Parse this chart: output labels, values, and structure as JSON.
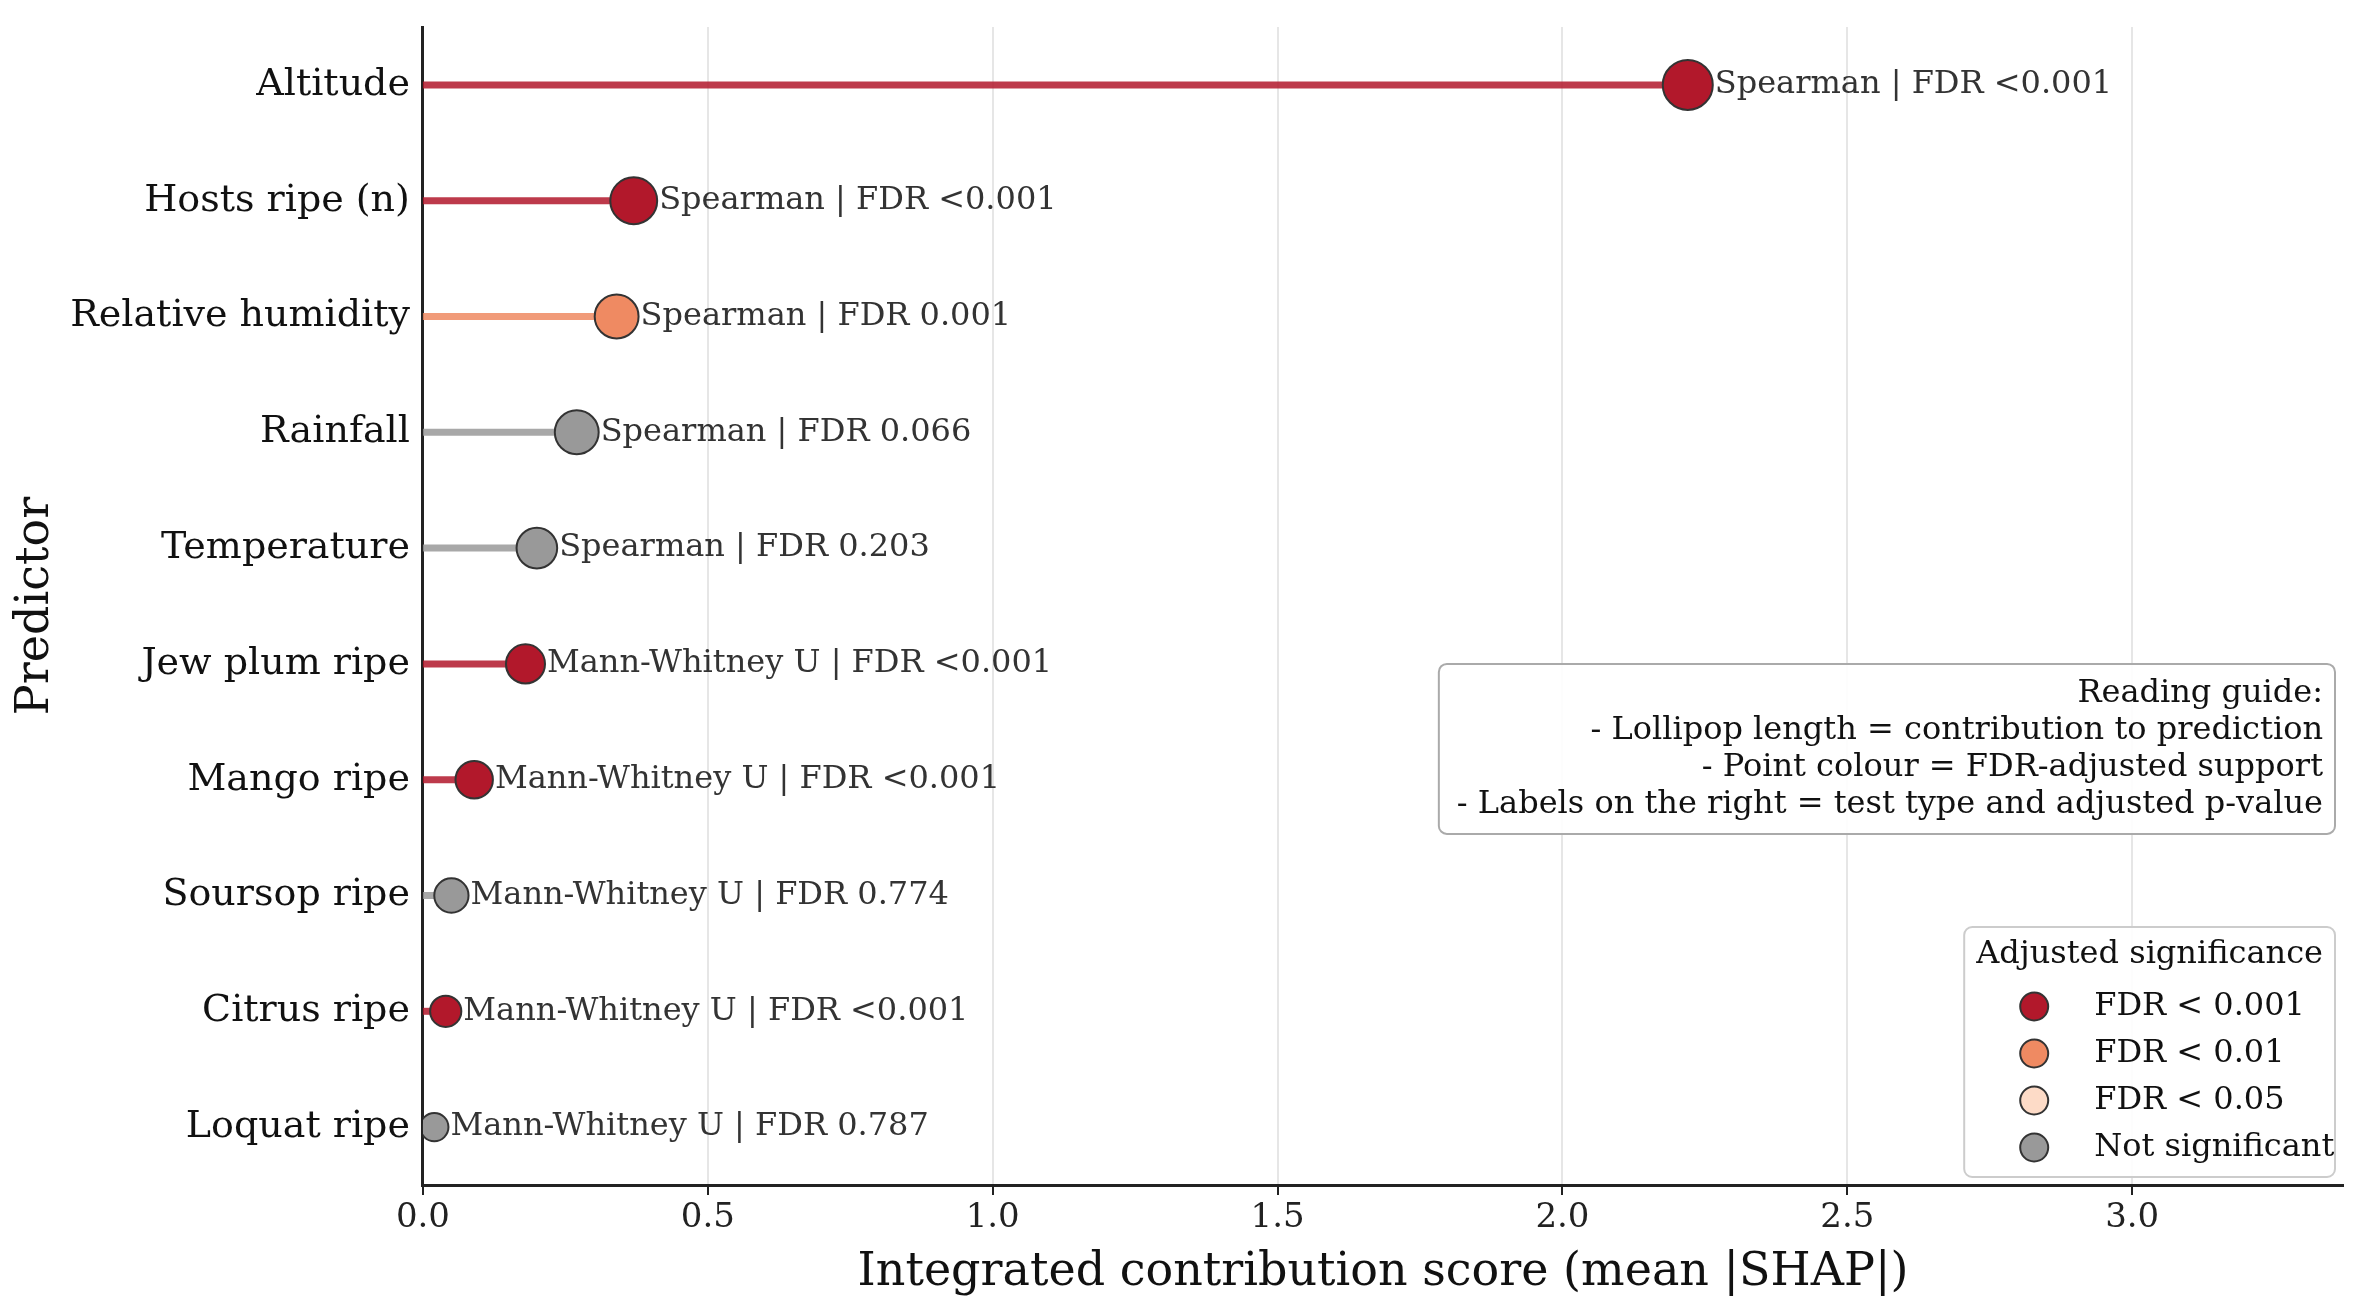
{
  "chart_data": {
    "type": "lollipop",
    "orientation": "horizontal",
    "categories": [
      "Altitude",
      "Hosts ripe (n)",
      "Relative humidity",
      "Rainfall",
      "Temperature",
      "Jew plum ripe",
      "Mango ripe",
      "Soursop ripe",
      "Citrus ripe",
      "Loquat ripe"
    ],
    "series": [
      {
        "name": "FDR < 0.001",
        "color": "#b2182b",
        "values": [
          2.22,
          0.37,
          null,
          null,
          null,
          0.18,
          0.09,
          null,
          0.04,
          null
        ],
        "sizes": [
          1,
          0.88,
          null,
          null,
          null,
          0.61,
          0.56,
          null,
          0.39,
          null
        ],
        "value_labels": [
          "Spearman | FDR <0.001",
          "Spearman | FDR <0.001",
          null,
          null,
          null,
          "Mann-Whitney U | FDR <0.001",
          "Mann-Whitney U | FDR <0.001",
          null,
          "Mann-Whitney U | FDR <0.001",
          null
        ]
      },
      {
        "name": "FDR < 0.01",
        "color": "#ef8a62",
        "values": [
          null,
          null,
          0.34,
          null,
          null,
          null,
          null,
          null,
          null,
          null
        ],
        "sizes": [
          null,
          null,
          0.77,
          null,
          null,
          null,
          null,
          null,
          null,
          null
        ],
        "value_labels": [
          null,
          null,
          "Spearman | FDR 0.001",
          null,
          null,
          null,
          null,
          null,
          null,
          null
        ]
      },
      {
        "name": "FDR < 0.05",
        "color": "#fddbc7",
        "values": [
          null,
          null,
          null,
          null,
          null,
          null,
          null,
          null,
          null,
          null
        ],
        "sizes": [
          null,
          null,
          null,
          null,
          null,
          null,
          null,
          null,
          null,
          null
        ],
        "value_labels": [
          null,
          null,
          null,
          null,
          null,
          null,
          null,
          null,
          null,
          null
        ]
      },
      {
        "name": "Not significant",
        "color": "#999999",
        "values": [
          null,
          null,
          null,
          0.27,
          0.2,
          null,
          null,
          0.05,
          null,
          0.02
        ],
        "sizes": [
          null,
          null,
          null,
          0.77,
          0.66,
          null,
          null,
          0.47,
          null,
          0.32
        ],
        "value_labels": [
          null,
          null,
          null,
          "Spearman | FDR 0.066",
          "Spearman | FDR 0.203",
          null,
          null,
          "Mann-Whitney U | FDR 0.774",
          null,
          "Mann-Whitney U | FDR 0.787"
        ]
      }
    ],
    "xlim": [
      0,
      3.37
    ],
    "xticks": [
      {
        "value": 0,
        "label": "0.0"
      },
      {
        "value": 0.5,
        "label": "0.5"
      },
      {
        "value": 1,
        "label": "1.0"
      },
      {
        "value": 1.5,
        "label": "1.5"
      },
      {
        "value": 2,
        "label": "2.0"
      },
      {
        "value": 2.5,
        "label": "2.5"
      },
      {
        "value": 3,
        "label": "3.0"
      }
    ],
    "xlabel": "Integrated contribution score (mean |SHAP|)",
    "ylabel": "Predictor",
    "legend_title": "Adjusted significance",
    "legend": "bottom right",
    "grid": "x",
    "marker": "circle",
    "annotations": [
      "Reading guide:\n- Lollipop length = contribution to prediction\n- Point colour = FDR-adjusted support\n- Labels on the right = test type and adjusted p-value"
    ]
  }
}
